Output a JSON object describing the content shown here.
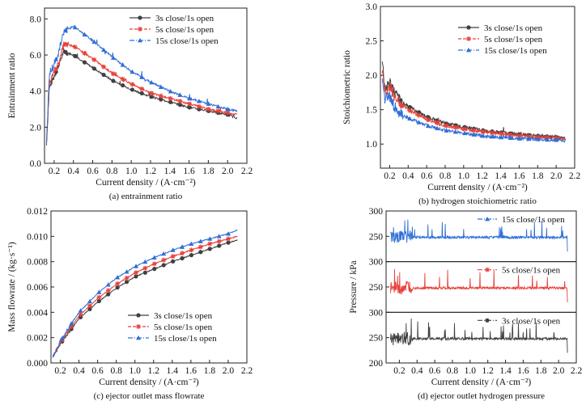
{
  "chart_data": [
    {
      "type": "line",
      "caption": "(a) entrainment ratio",
      "xlabel": "Current density / (A·cm⁻²)",
      "ylabel": "Entrainment ratio",
      "xlim": [
        0.1,
        2.2
      ],
      "ylim": [
        0.0,
        8.6
      ],
      "xticks": [
        "0.2",
        "0.4",
        "0.6",
        "0.8",
        "1.0",
        "1.2",
        "1.4",
        "1.6",
        "1.8",
        "2.0",
        "2.2"
      ],
      "yticks": [
        "0.0",
        "2.0",
        "4.0",
        "6.0",
        "8.0"
      ],
      "legend_position": "top-right",
      "series": [
        {
          "name": "3s close/1s open",
          "color": "#404040",
          "marker": "circle",
          "x": [
            0.12,
            0.15,
            0.2,
            0.25,
            0.3,
            0.4,
            0.6,
            0.8,
            1.0,
            1.2,
            1.4,
            1.6,
            1.8,
            2.0,
            2.1
          ],
          "y": [
            1.0,
            4.2,
            4.8,
            5.5,
            6.2,
            6.0,
            5.3,
            4.6,
            4.1,
            3.7,
            3.4,
            3.1,
            2.9,
            2.7,
            2.5
          ]
        },
        {
          "name": "5s close/1s open",
          "color": "#e8403a",
          "marker": "star",
          "x": [
            0.12,
            0.15,
            0.2,
            0.25,
            0.3,
            0.4,
            0.6,
            0.8,
            1.0,
            1.2,
            1.4,
            1.6,
            1.8,
            2.0,
            2.1
          ],
          "y": [
            1.0,
            4.5,
            5.0,
            5.6,
            6.6,
            6.5,
            5.8,
            5.0,
            4.4,
            3.9,
            3.6,
            3.3,
            3.0,
            2.8,
            2.7
          ]
        },
        {
          "name": "15s close/1s open",
          "color": "#2f6fd6",
          "marker": "triangle",
          "x": [
            0.12,
            0.15,
            0.2,
            0.25,
            0.3,
            0.4,
            0.6,
            0.8,
            1.0,
            1.2,
            1.4,
            1.6,
            1.8,
            2.0,
            2.1
          ],
          "y": [
            1.0,
            5.0,
            5.5,
            6.2,
            7.3,
            7.6,
            6.8,
            5.9,
            5.1,
            4.5,
            4.0,
            3.6,
            3.3,
            3.0,
            2.9
          ]
        }
      ]
    },
    {
      "type": "line",
      "caption": "(b) hydrogen stoichiometric ratio",
      "xlabel": "Current density / (A·cm⁻²)",
      "ylabel": "Stoichiometric ratio",
      "xlim": [
        0.1,
        2.2
      ],
      "ylim": [
        0.65,
        3.0
      ],
      "xticks": [
        "0.2",
        "0.4",
        "0.6",
        "0.8",
        "1.0",
        "1.2",
        "1.4",
        "1.6",
        "1.8",
        "2.0",
        "2.2"
      ],
      "yticks": [
        "1.0",
        "1.5",
        "2.0",
        "2.5",
        "3.0"
      ],
      "legend_position": "top-right",
      "series": [
        {
          "name": "3s close/1s open",
          "color": "#404040",
          "marker": "circle",
          "x": [
            0.12,
            0.15,
            0.2,
            0.25,
            0.3,
            0.4,
            0.6,
            0.8,
            1.0,
            1.2,
            1.4,
            1.6,
            1.8,
            2.0,
            2.1
          ],
          "y": [
            2.2,
            1.8,
            1.9,
            1.75,
            1.65,
            1.55,
            1.4,
            1.3,
            1.25,
            1.2,
            1.17,
            1.14,
            1.12,
            1.1,
            1.08
          ]
        },
        {
          "name": "5s close/1s open",
          "color": "#e8403a",
          "marker": "star",
          "x": [
            0.12,
            0.15,
            0.2,
            0.25,
            0.3,
            0.4,
            0.6,
            0.8,
            1.0,
            1.2,
            1.4,
            1.6,
            1.8,
            2.0,
            2.1
          ],
          "y": [
            2.1,
            1.75,
            1.85,
            1.7,
            1.6,
            1.5,
            1.36,
            1.27,
            1.22,
            1.18,
            1.15,
            1.12,
            1.1,
            1.09,
            1.07
          ]
        },
        {
          "name": "15s close/1s open",
          "color": "#2f6fd6",
          "marker": "triangle",
          "x": [
            0.12,
            0.15,
            0.2,
            0.25,
            0.3,
            0.4,
            0.6,
            0.8,
            1.0,
            1.2,
            1.4,
            1.6,
            1.8,
            2.0,
            2.1
          ],
          "y": [
            2.0,
            1.65,
            1.7,
            1.55,
            1.45,
            1.38,
            1.27,
            1.2,
            1.16,
            1.12,
            1.1,
            1.08,
            1.07,
            1.06,
            1.05
          ]
        }
      ]
    },
    {
      "type": "line",
      "caption": "(c) ejector outlet mass flowrate",
      "xlabel": "Current density / (A·cm⁻²)",
      "ylabel": "Mass flowrate / (kg·s⁻¹)",
      "xlim": [
        0.1,
        2.2
      ],
      "ylim": [
        0.0,
        0.012
      ],
      "xticks": [
        "0.2",
        "0.4",
        "0.6",
        "0.8",
        "1.0",
        "1.2",
        "1.4",
        "1.6",
        "1.8",
        "2.0",
        "2.2"
      ],
      "yticks": [
        "0.000",
        "0.002",
        "0.004",
        "0.006",
        "0.008",
        "0.010",
        "0.012"
      ],
      "legend_position": "bottom-right",
      "series": [
        {
          "name": "3s close/1s open",
          "color": "#404040",
          "marker": "circle",
          "x": [
            0.12,
            0.2,
            0.3,
            0.4,
            0.6,
            0.8,
            1.0,
            1.2,
            1.4,
            1.6,
            1.8,
            2.0,
            2.1
          ],
          "y": [
            0.0005,
            0.0015,
            0.0025,
            0.0035,
            0.0048,
            0.0059,
            0.0068,
            0.0074,
            0.008,
            0.0085,
            0.009,
            0.0095,
            0.0097
          ]
        },
        {
          "name": "5s close/1s open",
          "color": "#e8403a",
          "marker": "star",
          "x": [
            0.12,
            0.2,
            0.3,
            0.4,
            0.6,
            0.8,
            1.0,
            1.2,
            1.4,
            1.6,
            1.8,
            2.0,
            2.1
          ],
          "y": [
            0.0005,
            0.0016,
            0.0027,
            0.0037,
            0.0051,
            0.0062,
            0.0071,
            0.0078,
            0.0084,
            0.0089,
            0.0094,
            0.0098,
            0.01
          ]
        },
        {
          "name": "15s close/1s open",
          "color": "#2f6fd6",
          "marker": "triangle",
          "x": [
            0.12,
            0.2,
            0.3,
            0.4,
            0.6,
            0.8,
            1.0,
            1.2,
            1.4,
            1.6,
            1.8,
            2.0,
            2.1
          ],
          "y": [
            0.0005,
            0.0017,
            0.0029,
            0.004,
            0.0055,
            0.0067,
            0.0076,
            0.0083,
            0.0089,
            0.0094,
            0.0098,
            0.0102,
            0.0105
          ]
        }
      ]
    },
    {
      "type": "line",
      "caption": "(d) ejector outlet hydrogen pressure",
      "xlabel": "Current density / (A·cm⁻²)",
      "ylabel": "Pressure / kPa",
      "xlim": [
        0.05,
        2.2
      ],
      "xticks": [
        "0.2",
        "0.4",
        "0.6",
        "0.8",
        "1.0",
        "1.2",
        "1.4",
        "1.6",
        "1.8",
        "2.0",
        "2.2"
      ],
      "panels": [
        {
          "name": "15s close/1s open",
          "color": "#2f6fd6",
          "marker": "triangle",
          "ylim": [
            200,
            300
          ],
          "yticks": [
            "250",
            "300"
          ],
          "baseline": 248
        },
        {
          "name": "5s close/1s open",
          "color": "#e8403a",
          "marker": "star",
          "ylim": [
            200,
            300
          ],
          "yticks": [
            "250",
            "300"
          ],
          "baseline": 248
        },
        {
          "name": "3s close/1s open",
          "color": "#404040",
          "marker": "circle",
          "ylim": [
            200,
            300
          ],
          "yticks": [
            "200",
            "250",
            "300"
          ],
          "baseline": 248
        }
      ]
    }
  ]
}
